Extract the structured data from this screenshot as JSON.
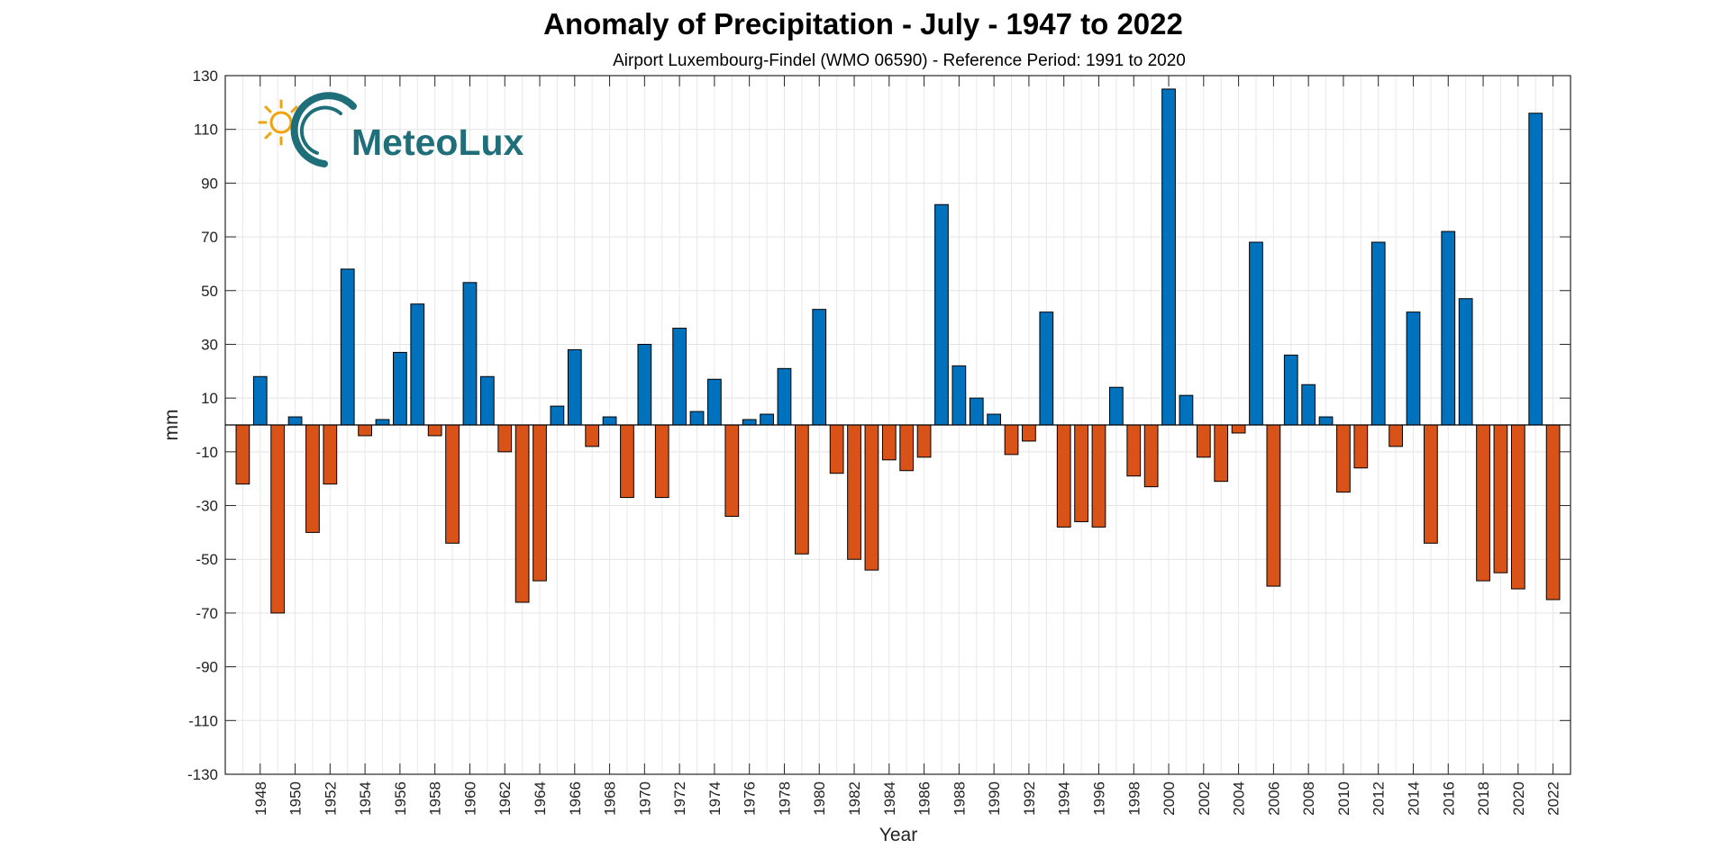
{
  "chart_data": {
    "type": "bar",
    "title": "Anomaly of Precipitation - July - 1947 to 2022",
    "subtitle": "Airport Luxembourg-Findel (WMO 06590) - Reference Period: 1991 to 2020",
    "xlabel": "Year",
    "ylabel": "mm",
    "ylim": [
      -130,
      130
    ],
    "yticks": [
      -130,
      -110,
      -90,
      -70,
      -50,
      -30,
      -10,
      10,
      30,
      50,
      70,
      90,
      110,
      130
    ],
    "xlim": [
      1946,
      2023
    ],
    "xticks": [
      1948,
      1950,
      1952,
      1954,
      1956,
      1958,
      1960,
      1962,
      1964,
      1966,
      1968,
      1970,
      1972,
      1974,
      1976,
      1978,
      1980,
      1982,
      1984,
      1986,
      1988,
      1990,
      1992,
      1994,
      1996,
      1998,
      2000,
      2002,
      2004,
      2006,
      2008,
      2010,
      2012,
      2014,
      2016,
      2018,
      2020,
      2022
    ],
    "grid": true,
    "colors": {
      "positive": "#0072bd",
      "negative": "#d95319",
      "edge": "#000000"
    },
    "years": [
      1947,
      1948,
      1949,
      1950,
      1951,
      1952,
      1953,
      1954,
      1955,
      1956,
      1957,
      1958,
      1959,
      1960,
      1961,
      1962,
      1963,
      1964,
      1965,
      1966,
      1967,
      1968,
      1969,
      1970,
      1971,
      1972,
      1973,
      1974,
      1975,
      1976,
      1977,
      1978,
      1979,
      1980,
      1981,
      1982,
      1983,
      1984,
      1985,
      1986,
      1987,
      1988,
      1989,
      1990,
      1991,
      1992,
      1993,
      1994,
      1995,
      1996,
      1997,
      1998,
      1999,
      2000,
      2001,
      2002,
      2003,
      2004,
      2005,
      2006,
      2007,
      2008,
      2009,
      2010,
      2011,
      2012,
      2013,
      2014,
      2015,
      2016,
      2017,
      2018,
      2019,
      2020,
      2021,
      2022
    ],
    "values": [
      -22,
      18,
      -70,
      3,
      -40,
      -22,
      58,
      -4,
      2,
      27,
      45,
      -4,
      -44,
      53,
      18,
      -10,
      -66,
      -58,
      7,
      28,
      -8,
      3,
      -27,
      30,
      -27,
      36,
      5,
      17,
      -34,
      2,
      4,
      21,
      -48,
      43,
      -18,
      -50,
      -54,
      -13,
      -17,
      -12,
      82,
      22,
      10,
      4,
      -11,
      -6,
      42,
      -38,
      -36,
      -38,
      14,
      -19,
      -23,
      125,
      11,
      -12,
      -21,
      -3,
      68,
      -60,
      26,
      15,
      3,
      -25,
      -16,
      68,
      -8,
      42,
      -44,
      72,
      47,
      -58,
      -55,
      -61,
      116,
      -65
    ]
  },
  "logo": {
    "text": "MeteoLux",
    "colors": {
      "sun": "#f0a30a",
      "ring": "#1f6f7a",
      "text": "#1f6f7a"
    }
  }
}
